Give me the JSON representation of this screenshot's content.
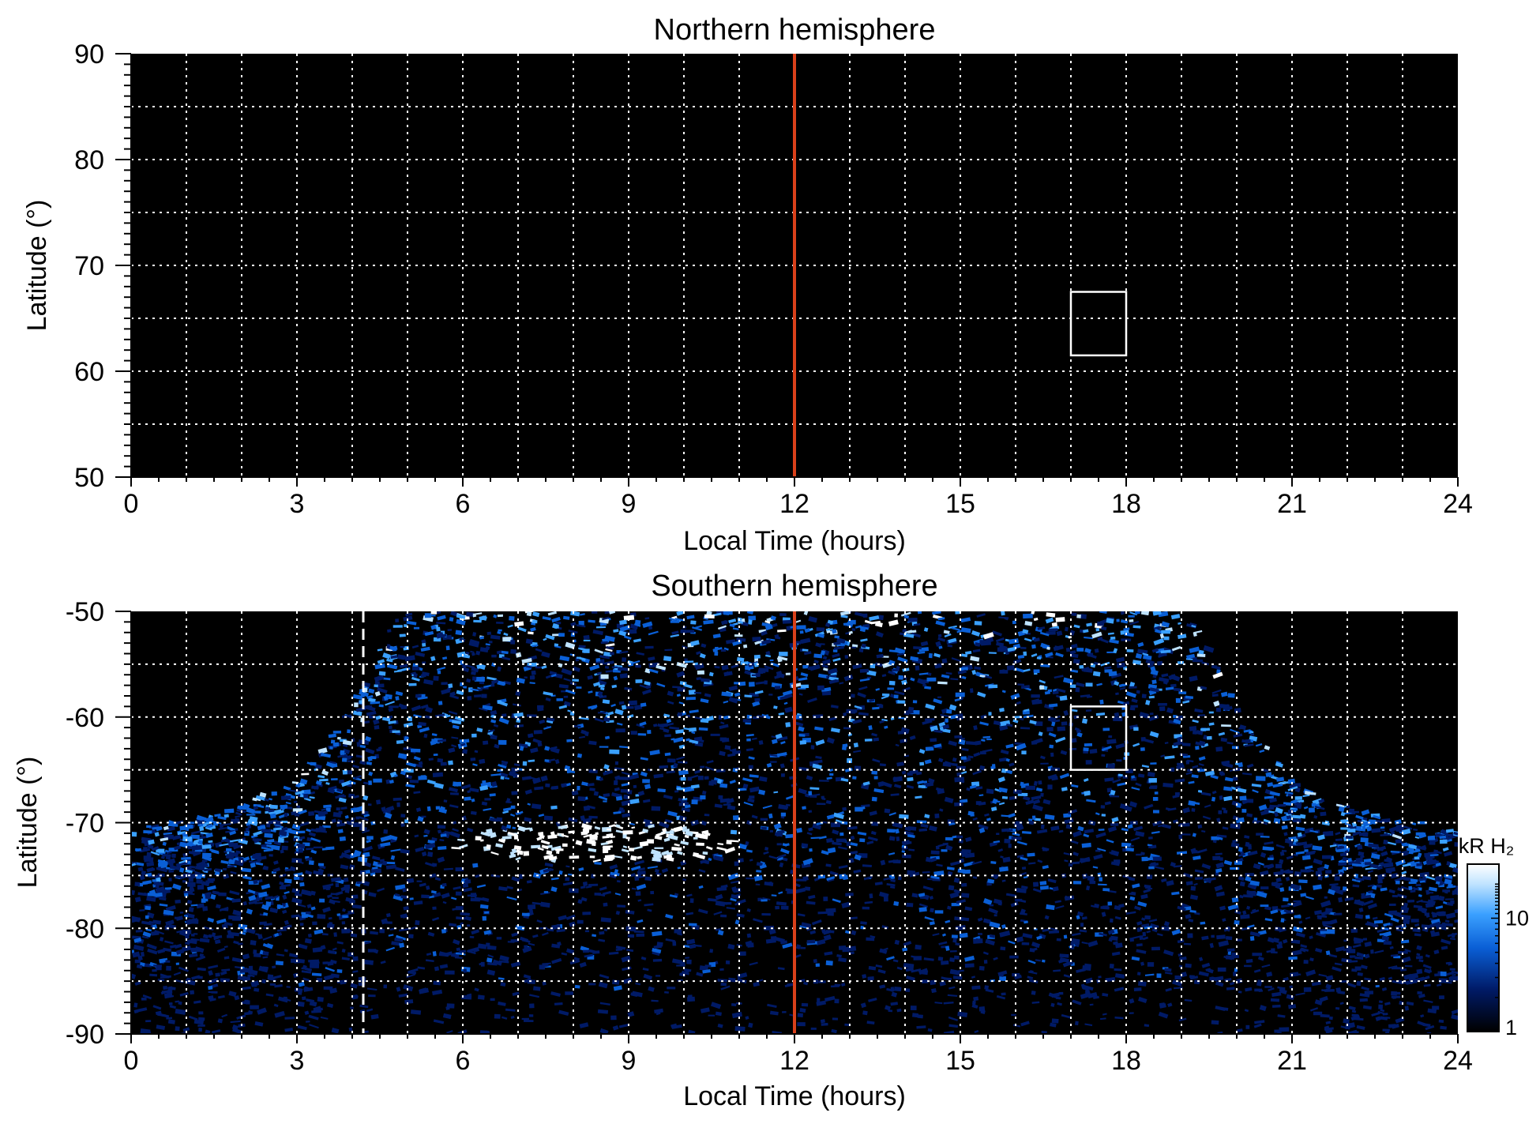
{
  "chart_data": [
    {
      "type": "heatmap",
      "title": "Northern hemisphere",
      "xlabel": "Local Time (hours)",
      "ylabel": "Latitude (°)",
      "xlim": [
        0,
        24
      ],
      "ylim": [
        50,
        90
      ],
      "xticks": [
        0,
        3,
        6,
        9,
        12,
        15,
        18,
        21,
        24
      ],
      "yticks": [
        50,
        60,
        70,
        80,
        90
      ],
      "grid": true,
      "grid_x_step": 1,
      "grid_y_step": 5,
      "background_color": "#000000",
      "noon_line": {
        "x": 12,
        "color": "#d9401a"
      },
      "box": {
        "x": [
          17,
          18
        ],
        "y": [
          61.5,
          67.5
        ],
        "color": "#ffffff"
      }
    },
    {
      "type": "heatmap",
      "title": "Southern hemisphere",
      "xlabel": "Local Time (hours)",
      "ylabel": "Latitude (°)",
      "xlim": [
        0,
        24
      ],
      "ylim": [
        -90,
        -50
      ],
      "xticks": [
        0,
        3,
        6,
        9,
        12,
        15,
        18,
        21,
        24
      ],
      "yticks": [
        -90,
        -80,
        -70,
        -60,
        -50
      ],
      "grid": true,
      "grid_x_step": 1,
      "grid_y_step": 5,
      "background_color": "#000000",
      "noon_line": {
        "x": 12,
        "color": "#d9401a"
      },
      "dashed_line": {
        "x": 4.2,
        "color": "#ffffff"
      },
      "box": {
        "x": [
          17,
          18
        ],
        "y": [
          -65,
          -59
        ],
        "color": "#ffffff"
      },
      "coverage_edge": {
        "left": {
          "lt": [
            0,
            1.5,
            3,
            4,
            4.5,
            4.9
          ],
          "lat": [
            -70.5,
            -69.3,
            -66,
            -59,
            -53,
            -50
          ]
        },
        "right": {
          "lt": [
            19.1,
            19.5,
            20,
            21,
            22.5,
            24
          ],
          "lat": [
            -50,
            -53,
            -59,
            -66,
            -69.3,
            -70.5
          ]
        }
      },
      "bright_feature": {
        "lt": [
          5.8,
          11
        ],
        "lat_center": -72,
        "peak": 30
      },
      "colorbar": {
        "label": "kR H₂",
        "scale": "log",
        "range": [
          1,
          30
        ],
        "ticks": [
          1,
          10
        ],
        "tick_labels": [
          "1",
          "10"
        ],
        "colormap": [
          "#000000",
          "#001a66",
          "#0a5fd6",
          "#3aa0ff",
          "#bfe3ff",
          "#ffffff"
        ]
      }
    }
  ]
}
